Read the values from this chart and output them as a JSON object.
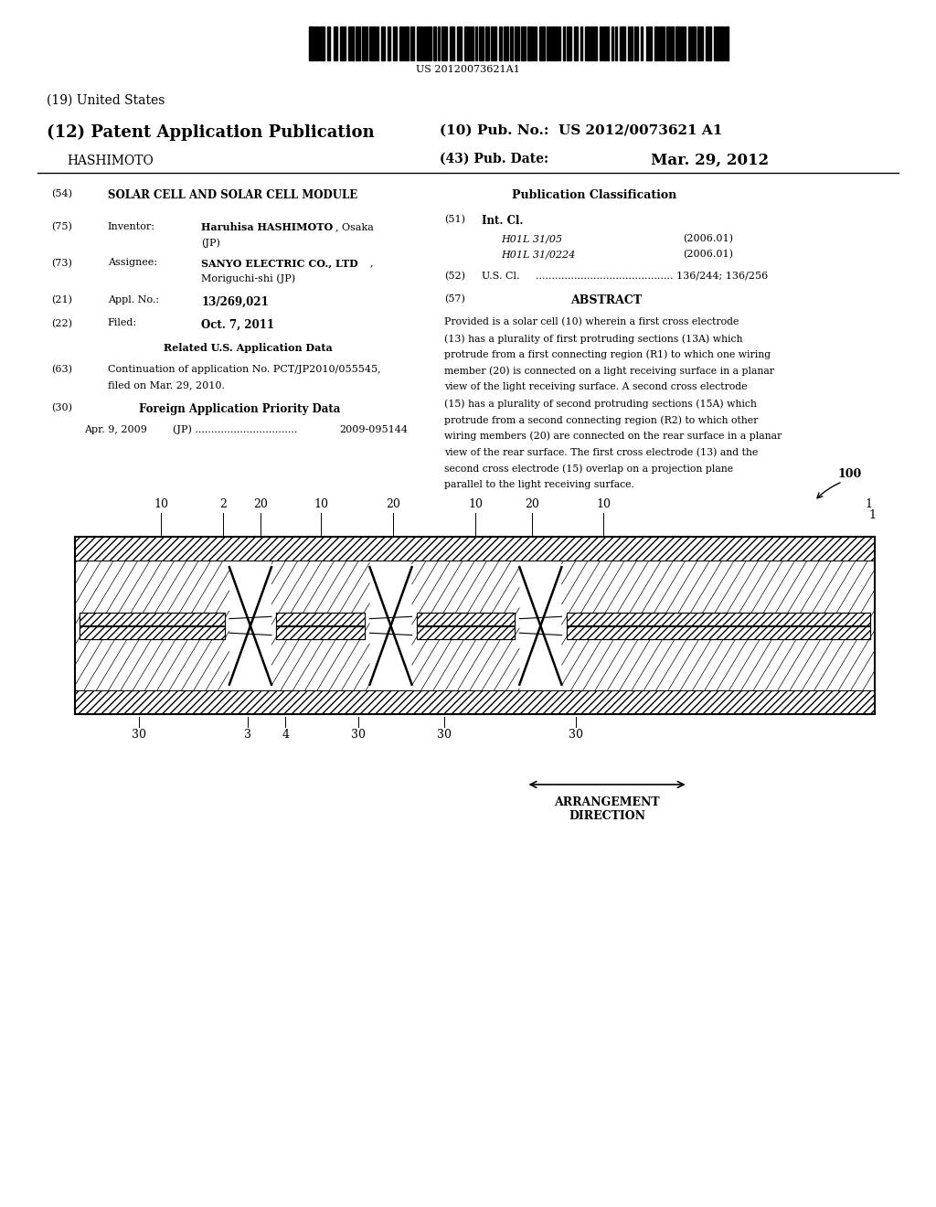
{
  "title": "US 20120073621A1",
  "background_color": "#ffffff",
  "fig_width": 10.24,
  "fig_height": 13.2,
  "header": {
    "barcode_text": "US 20120073621A1",
    "us_label": "(19) United States",
    "patent_label": "(12) Patent Application Publication",
    "hashimoto_label": "    HASHIMOTO",
    "pub_no_label": "(10) Pub. No.:  US 2012/0073621 A1",
    "pub_date_label": "(43) Pub. Date:",
    "pub_date_value": "Mar. 29, 2012"
  },
  "right_column": {
    "abstract_text": "Provided is a solar cell (10) wherein a first cross electrode (13) has a plurality of first protruding sections (13A) which protrude from a first connecting region (R1) to which one wiring member (20) is connected on a light receiving surface in a planar view of the light receiving surface. A second cross electrode (15) has a plurality of second protruding sections (15A) which protrude from a second connecting region (R2) to which other wiring members (20) are connected on the rear surface in a planar view of the rear surface. The first cross electrode (13) and the second cross electrode (15) overlap on a projection plane parallel to the light receiving surface."
  }
}
